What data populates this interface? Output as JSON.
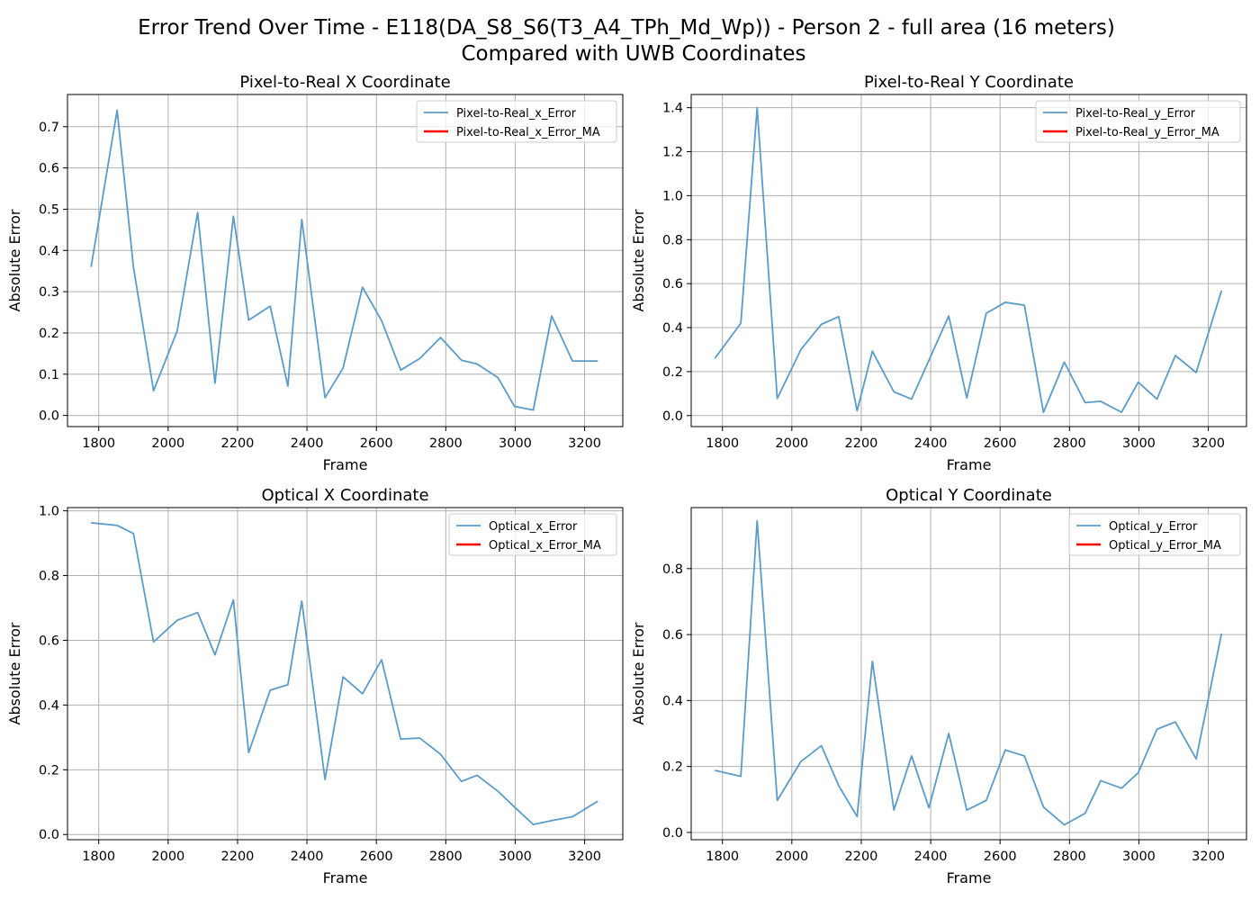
{
  "figure": {
    "title_line1": "Error Trend Over Time - E118(DA_S8_S6(T3_A4_TPh_Md_Wp)) - Person 2 - full area (16 meters)",
    "title_line2": "Compared with UWB Coordinates",
    "error_color": "#5b9bc8",
    "ma_color": "#ff0000"
  },
  "chart_data": [
    {
      "id": "p2r-x",
      "type": "line",
      "title": "Pixel-to-Real X Coordinate",
      "xlabel": "Frame",
      "ylabel": "Absolute Error",
      "xlim": [
        1710,
        3310
      ],
      "ylim": [
        -0.027,
        0.778
      ],
      "xticks": [
        1800,
        2000,
        2200,
        2400,
        2600,
        2800,
        3000,
        3200
      ],
      "yticks": [
        0.0,
        0.1,
        0.2,
        0.3,
        0.4,
        0.5,
        0.6,
        0.7
      ],
      "ytick_labels": [
        "0.0",
        "0.1",
        "0.2",
        "0.3",
        "0.4",
        "0.5",
        "0.6",
        "0.7"
      ],
      "grid": true,
      "legend_position": "top-right",
      "series": [
        {
          "name": "Pixel-to-Real_x_Error",
          "color": "#5b9bc8",
          "x": [
            1778,
            1853,
            1900,
            1958,
            2026,
            2085,
            2135,
            2188,
            2232,
            2294,
            2345,
            2385,
            2452,
            2504,
            2560,
            2615,
            2670,
            2725,
            2785,
            2845,
            2890,
            2950,
            2998,
            3052,
            3105,
            3165,
            3238
          ],
          "y": [
            0.36,
            0.74,
            0.36,
            0.06,
            0.205,
            0.492,
            0.078,
            0.483,
            0.231,
            0.265,
            0.071,
            0.475,
            0.043,
            0.115,
            0.311,
            0.23,
            0.11,
            0.138,
            0.189,
            0.134,
            0.125,
            0.092,
            0.022,
            0.013,
            0.241,
            0.132,
            0.132
          ]
        },
        {
          "name": "Pixel-to-Real_x_Error_MA",
          "color": "#ff0000",
          "x": [],
          "y": []
        }
      ]
    },
    {
      "id": "p2r-y",
      "type": "line",
      "title": "Pixel-to-Real Y Coordinate",
      "xlabel": "Frame",
      "ylabel": "Absolute Error",
      "xlim": [
        1710,
        3310
      ],
      "ylim": [
        -0.05,
        1.46
      ],
      "xticks": [
        1800,
        2000,
        2200,
        2400,
        2600,
        2800,
        3000,
        3200
      ],
      "yticks": [
        0.0,
        0.2,
        0.4,
        0.6,
        0.8,
        1.0,
        1.2,
        1.4
      ],
      "ytick_labels": [
        "0.0",
        "0.2",
        "0.4",
        "0.6",
        "0.8",
        "1.0",
        "1.2",
        "1.4"
      ],
      "grid": true,
      "legend_position": "top-right",
      "series": [
        {
          "name": "Pixel-to-Real_y_Error",
          "color": "#5b9bc8",
          "x": [
            1778,
            1853,
            1900,
            1958,
            2026,
            2085,
            2135,
            2188,
            2232,
            2294,
            2345,
            2452,
            2504,
            2560,
            2615,
            2670,
            2725,
            2785,
            2845,
            2890,
            2950,
            2998,
            3052,
            3105,
            3165,
            3238
          ],
          "y": [
            0.26,
            0.42,
            1.4,
            0.078,
            0.3,
            0.415,
            0.45,
            0.022,
            0.293,
            0.108,
            0.075,
            0.453,
            0.08,
            0.465,
            0.515,
            0.502,
            0.015,
            0.243,
            0.059,
            0.065,
            0.015,
            0.152,
            0.075,
            0.273,
            0.196,
            0.568
          ]
        },
        {
          "name": "Pixel-to-Real_y_Error_MA",
          "color": "#ff0000",
          "x": [],
          "y": []
        }
      ]
    },
    {
      "id": "opt-x",
      "type": "line",
      "title": "Optical X Coordinate",
      "xlabel": "Frame",
      "ylabel": "Absolute Error",
      "xlim": [
        1710,
        3310
      ],
      "ylim": [
        -0.016,
        1.01
      ],
      "xticks": [
        1800,
        2000,
        2200,
        2400,
        2600,
        2800,
        3000,
        3200
      ],
      "yticks": [
        0.0,
        0.2,
        0.4,
        0.6,
        0.8,
        1.0
      ],
      "ytick_labels": [
        "0.0",
        "0.2",
        "0.4",
        "0.6",
        "0.8",
        "1.0"
      ],
      "grid": true,
      "legend_position": "top-right",
      "series": [
        {
          "name": "Optical_x_Error",
          "color": "#5b9bc8",
          "x": [
            1778,
            1853,
            1900,
            1958,
            2026,
            2085,
            2135,
            2188,
            2232,
            2294,
            2345,
            2385,
            2452,
            2504,
            2560,
            2615,
            2670,
            2725,
            2785,
            2845,
            2890,
            2950,
            2998,
            3052,
            3105,
            3165,
            3238
          ],
          "y": [
            0.963,
            0.955,
            0.93,
            0.595,
            0.662,
            0.686,
            0.555,
            0.725,
            0.253,
            0.446,
            0.463,
            0.721,
            0.17,
            0.487,
            0.435,
            0.54,
            0.295,
            0.298,
            0.248,
            0.164,
            0.183,
            0.134,
            0.085,
            0.031,
            0.043,
            0.055,
            0.103
          ]
        },
        {
          "name": "Optical_x_Error_MA",
          "color": "#ff0000",
          "x": [],
          "y": []
        }
      ]
    },
    {
      "id": "opt-y",
      "type": "line",
      "title": "Optical Y Coordinate",
      "xlabel": "Frame",
      "ylabel": "Absolute Error",
      "xlim": [
        1710,
        3310
      ],
      "ylim": [
        -0.022,
        0.985
      ],
      "xticks": [
        1800,
        2000,
        2200,
        2400,
        2600,
        2800,
        3000,
        3200
      ],
      "yticks": [
        0.0,
        0.2,
        0.4,
        0.6,
        0.8
      ],
      "ytick_labels": [
        "0.0",
        "0.2",
        "0.4",
        "0.6",
        "0.8"
      ],
      "grid": true,
      "legend_position": "top-right",
      "series": [
        {
          "name": "Optical_y_Error",
          "color": "#5b9bc8",
          "x": [
            1778,
            1853,
            1900,
            1958,
            2026,
            2085,
            2135,
            2188,
            2232,
            2294,
            2345,
            2395,
            2452,
            2504,
            2560,
            2615,
            2670,
            2725,
            2785,
            2845,
            2890,
            2950,
            2998,
            3052,
            3105,
            3165,
            3238
          ],
          "y": [
            0.188,
            0.17,
            0.945,
            0.097,
            0.215,
            0.263,
            0.142,
            0.048,
            0.519,
            0.068,
            0.232,
            0.075,
            0.3,
            0.068,
            0.097,
            0.25,
            0.232,
            0.077,
            0.023,
            0.058,
            0.157,
            0.134,
            0.181,
            0.313,
            0.335,
            0.223,
            0.603
          ]
        },
        {
          "name": "Optical_y_Error_MA",
          "color": "#ff0000",
          "x": [],
          "y": []
        }
      ]
    }
  ]
}
